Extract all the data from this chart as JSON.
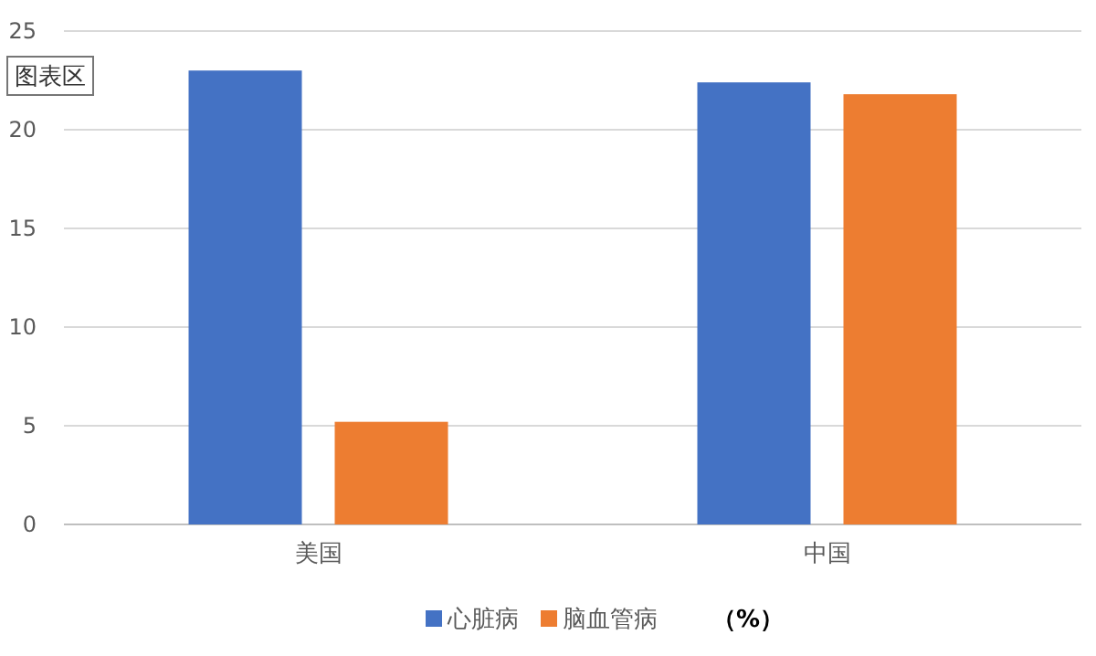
{
  "chart_data": {
    "type": "bar",
    "categories": [
      "美国",
      "中国"
    ],
    "series": [
      {
        "name": "心脏病",
        "color": "#4472c4",
        "values": [
          23.0,
          22.4
        ]
      },
      {
        "name": "脑血管病",
        "color": "#ed7d31",
        "values": [
          5.2,
          21.8
        ]
      }
    ],
    "ylim": [
      0,
      25
    ],
    "yticks": [
      0,
      5,
      10,
      15,
      20,
      25
    ],
    "grid": "y",
    "legend": "bottom",
    "annotations": [
      "（%）",
      "图表区"
    ]
  }
}
